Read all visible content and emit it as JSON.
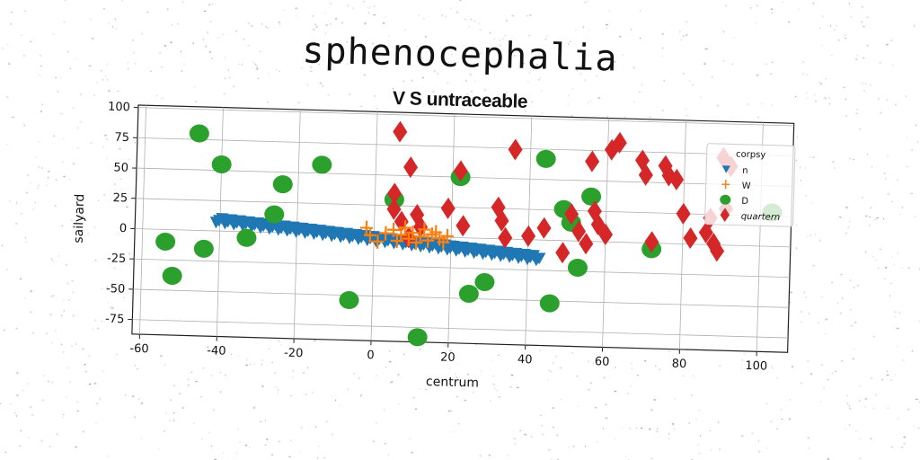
{
  "title": "sphenocephalia",
  "subtitle": "V S untraceable",
  "chart_data": {
    "type": "scatter",
    "xlabel": "centrum",
    "ylabel": "sailyard",
    "xlim": [
      -62,
      108
    ],
    "ylim": [
      -87,
      102
    ],
    "xticks": [
      "-60",
      "-40",
      "-20",
      "0",
      "20",
      "40",
      "60",
      "80",
      "100"
    ],
    "yticks": [
      "100",
      "75",
      "50",
      "25",
      "0",
      "-25",
      "-50",
      "-75"
    ],
    "grid": true,
    "legend": {
      "title": "corpsy",
      "placement": "top-right",
      "entries": [
        "n",
        "W",
        "D",
        "quartern"
      ]
    },
    "series": [
      {
        "name": "n",
        "marker": "triangle-down",
        "color": "#1f77b4",
        "x_range": [
          -41,
          43
        ],
        "y_range": [
          9,
          -15
        ],
        "count": 110
      },
      {
        "name": "W",
        "marker": "plus",
        "color": "#ff7f0e",
        "points": [
          [
            -2,
            6
          ],
          [
            -1,
            0
          ],
          [
            1,
            -5
          ],
          [
            3,
            2
          ],
          [
            5,
            5
          ],
          [
            6,
            -4
          ],
          [
            7,
            1
          ],
          [
            8,
            7
          ],
          [
            9,
            -2
          ],
          [
            10,
            3
          ],
          [
            11,
            -5
          ],
          [
            12,
            0
          ],
          [
            13,
            6
          ],
          [
            14,
            -3
          ],
          [
            15,
            2
          ],
          [
            16,
            4
          ],
          [
            17,
            -1
          ],
          [
            18,
            -4
          ],
          [
            19,
            1
          ]
        ]
      },
      {
        "name": "D",
        "marker": "circle",
        "color": "#2ca02c",
        "points": [
          [
            -46,
            80
          ],
          [
            -40,
            55
          ],
          [
            -54,
            -10
          ],
          [
            -52,
            -38
          ],
          [
            -44,
            -15
          ],
          [
            -33,
            -5
          ],
          [
            -26,
            15
          ],
          [
            -24,
            40
          ],
          [
            -14,
            57
          ],
          [
            -6,
            -54
          ],
          [
            5,
            30
          ],
          [
            12,
            -83
          ],
          [
            22,
            50
          ],
          [
            25,
            -46
          ],
          [
            29,
            -36
          ],
          [
            44,
            67
          ],
          [
            46,
            -52
          ],
          [
            49,
            26
          ],
          [
            51,
            15
          ],
          [
            53,
            -22
          ],
          [
            56,
            37
          ],
          [
            72,
            -5
          ],
          [
            103,
            28
          ]
        ]
      },
      {
        "name": "quartern",
        "marker": "thin_diamond",
        "color": "#d62728",
        "points": [
          [
            6,
            86
          ],
          [
            9,
            57
          ],
          [
            5,
            35
          ],
          [
            5,
            22
          ],
          [
            7,
            12
          ],
          [
            9,
            -1
          ],
          [
            11,
            18
          ],
          [
            12,
            8
          ],
          [
            19,
            24
          ],
          [
            22,
            55
          ],
          [
            23,
            10
          ],
          [
            32,
            26
          ],
          [
            33,
            15
          ],
          [
            34,
            1
          ],
          [
            36,
            74
          ],
          [
            40,
            3
          ],
          [
            44,
            10
          ],
          [
            49,
            -10
          ],
          [
            51,
            22
          ],
          [
            53,
            8
          ],
          [
            55,
            -2
          ],
          [
            56,
            66
          ],
          [
            57,
            25
          ],
          [
            58,
            14
          ],
          [
            60,
            6
          ],
          [
            61,
            76
          ],
          [
            63,
            82
          ],
          [
            69,
            68
          ],
          [
            70,
            56
          ],
          [
            72,
            1
          ],
          [
            75,
            64
          ],
          [
            76,
            56
          ],
          [
            78,
            53
          ],
          [
            80,
            25
          ],
          [
            82,
            5
          ],
          [
            86,
            10
          ],
          [
            87,
            22
          ],
          [
            88,
            1
          ],
          [
            89,
            -5
          ],
          [
            90,
            72
          ],
          [
            91,
            30
          ],
          [
            92,
            65
          ]
        ]
      }
    ]
  }
}
